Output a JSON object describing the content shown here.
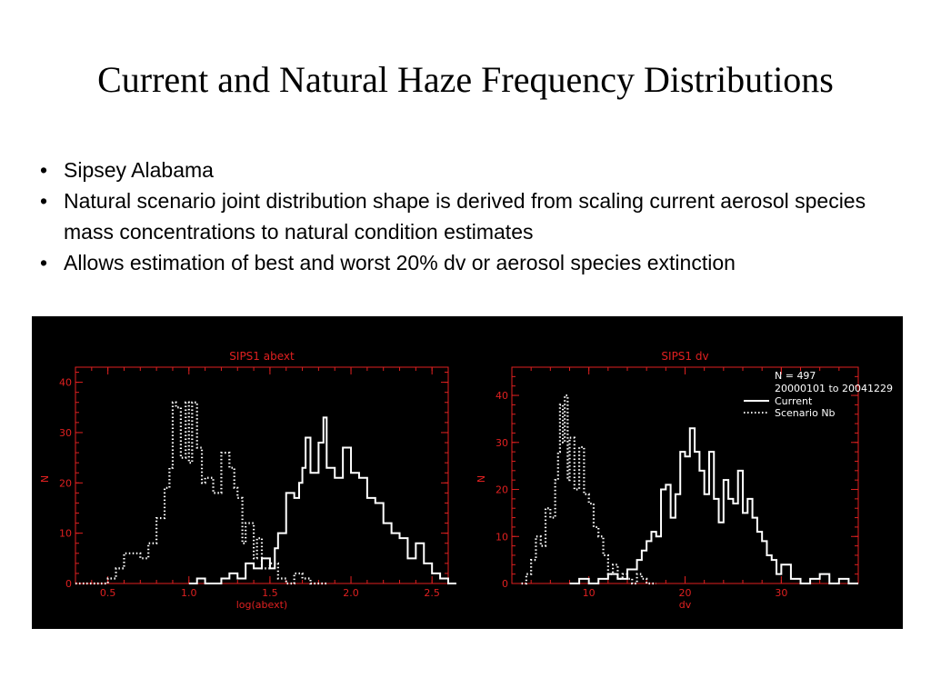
{
  "slide": {
    "title": "Current and Natural Haze Frequency Distributions",
    "bullets": [
      "Sipsey Alabama",
      "Natural scenario joint distribution shape is derived from scaling current aerosol species mass concentrations to natural condition estimates",
      "Allows estimation of best and worst 20% dv or aerosol species extinction"
    ]
  },
  "colors": {
    "axis": "#e02020",
    "data": "#ffffff",
    "background": "#000000"
  },
  "chart_data": [
    {
      "type": "histogram",
      "title": "SIPS1 abext",
      "xlabel": "log(abext)",
      "ylabel": "N",
      "xlim": [
        0.3,
        2.6
      ],
      "ylim": [
        0,
        43
      ],
      "xticks": [
        "0.5",
        "1.0",
        "1.5",
        "2.0",
        "2.5"
      ],
      "xtick_values": [
        0.5,
        1.0,
        1.5,
        2.0,
        2.5
      ],
      "yticks": [
        "0",
        "10",
        "20",
        "30",
        "40"
      ],
      "ytick_values": [
        0,
        10,
        20,
        30,
        40
      ],
      "series": [
        {
          "style": "dotted",
          "x": [
            0.3,
            0.4,
            0.5,
            0.55,
            0.6,
            0.7,
            0.75,
            0.8,
            0.85,
            0.88,
            0.9,
            0.92,
            0.95,
            0.98,
            1.0,
            1.02,
            1.05,
            1.08,
            1.1,
            1.15,
            1.2,
            1.25,
            1.28,
            1.3,
            1.33,
            1.35,
            1.4,
            1.42,
            1.45,
            1.5,
            1.55,
            1.6,
            1.65,
            1.7,
            1.75,
            1.8
          ],
          "values": [
            0,
            0,
            1,
            3,
            6,
            5,
            8,
            13,
            19,
            23,
            36,
            35,
            25,
            36,
            24,
            36,
            27,
            20,
            21,
            18,
            26,
            23,
            19,
            17,
            8,
            12,
            5,
            9,
            3,
            4,
            1,
            0,
            2,
            1,
            0,
            0
          ]
        },
        {
          "style": "solid",
          "x": [
            1.0,
            1.05,
            1.1,
            1.2,
            1.25,
            1.3,
            1.35,
            1.4,
            1.45,
            1.5,
            1.53,
            1.55,
            1.6,
            1.65,
            1.68,
            1.7,
            1.72,
            1.75,
            1.8,
            1.83,
            1.85,
            1.9,
            1.95,
            2.0,
            2.05,
            2.1,
            2.15,
            2.2,
            2.25,
            2.3,
            2.35,
            2.4,
            2.45,
            2.5,
            2.55,
            2.6
          ],
          "values": [
            0,
            1,
            0,
            1,
            2,
            1,
            4,
            3,
            5,
            3,
            7,
            10,
            18,
            17,
            20,
            23,
            29,
            22,
            28,
            33,
            23,
            21,
            27,
            22,
            21,
            17,
            16,
            12,
            10,
            9,
            5,
            8,
            4,
            2,
            1,
            0
          ]
        }
      ]
    },
    {
      "type": "histogram",
      "title": "SIPS1 dv",
      "xlabel": "dv",
      "ylabel": "N",
      "xlim": [
        2,
        38
      ],
      "ylim": [
        0,
        46
      ],
      "xticks": [
        "10",
        "20",
        "30"
      ],
      "xtick_values": [
        10,
        20,
        30
      ],
      "yticks": [
        "0",
        "10",
        "20",
        "30",
        "40"
      ],
      "ytick_values": [
        0,
        10,
        20,
        30,
        40
      ],
      "legend": {
        "position": "top-right",
        "lines": [
          "N = 497",
          "20000101 to 20041229"
        ],
        "entries": [
          "Current",
          "Scenario Nb"
        ]
      },
      "series": [
        {
          "name": "Scenario Nb",
          "style": "dotted",
          "x": [
            3,
            3.5,
            4,
            4.5,
            5,
            5.5,
            6,
            6.5,
            6.8,
            7,
            7.3,
            7.5,
            7.8,
            8,
            8.5,
            9,
            9.5,
            10,
            10.5,
            11,
            11.5,
            12,
            12.5,
            13,
            13.5,
            14,
            14.5,
            15,
            15.5,
            16,
            16.5
          ],
          "values": [
            0,
            2,
            5,
            10,
            8,
            16,
            14,
            22,
            28,
            38,
            30,
            40,
            22,
            31,
            20,
            29,
            19,
            17,
            12,
            10,
            6,
            2,
            4,
            1,
            2,
            1,
            0,
            2,
            1,
            0,
            0
          ]
        },
        {
          "name": "Current",
          "style": "solid",
          "x": [
            8,
            9,
            10,
            11,
            12,
            13,
            14,
            15,
            15.5,
            16,
            16.5,
            17,
            17.5,
            18,
            18.5,
            19,
            19.5,
            20,
            20.5,
            21,
            21.5,
            22,
            22.5,
            23,
            23.5,
            24,
            24.5,
            25,
            25.5,
            26,
            26.5,
            27,
            27.5,
            28,
            28.5,
            29,
            29.5,
            30,
            31,
            32,
            33,
            34,
            35,
            36,
            37,
            37.5
          ],
          "values": [
            0,
            1,
            0,
            1,
            2,
            1,
            3,
            5,
            7,
            9,
            11,
            10,
            20,
            21,
            14,
            19,
            28,
            27,
            33,
            28,
            24,
            19,
            28,
            18,
            13,
            22,
            18,
            17,
            24,
            15,
            18,
            14,
            11,
            9,
            6,
            5,
            2,
            4,
            1,
            0,
            1,
            2,
            0,
            1,
            0,
            0
          ]
        }
      ]
    }
  ]
}
